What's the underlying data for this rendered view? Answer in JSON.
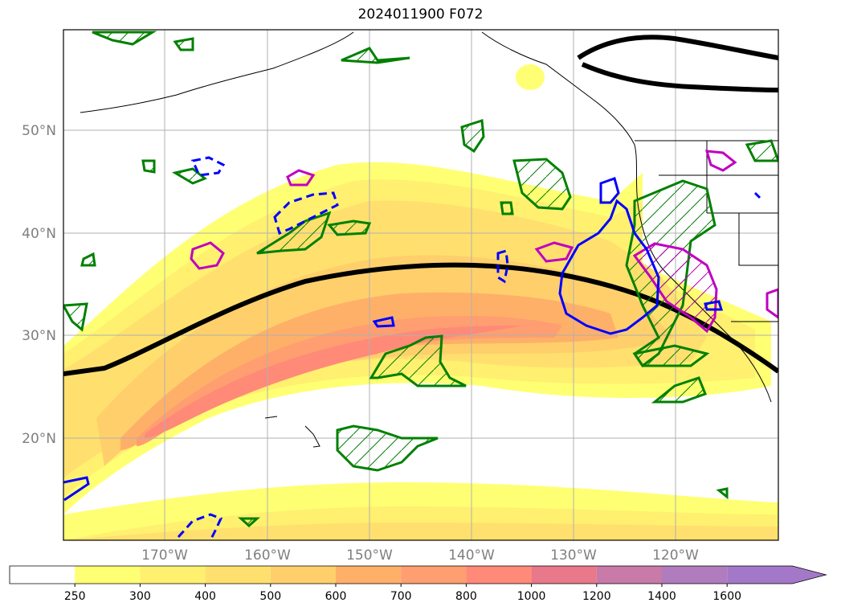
{
  "title": "2024011900 F072",
  "lat_labels": [
    "50°N",
    "40°N",
    "30°N",
    "20°N"
  ],
  "lon_labels": [
    "170°W",
    "160°W",
    "150°W",
    "140°W",
    "130°W",
    "120°W"
  ],
  "colorbar": {
    "levels": [
      "250",
      "300",
      "400",
      "500",
      "600",
      "700",
      "800",
      "1000",
      "1200",
      "1400",
      "1600"
    ],
    "colors": [
      "#ffffff",
      "#ffff73",
      "#fff070",
      "#ffe06e",
      "#ffcf6c",
      "#ffb068",
      "#ff9e70",
      "#ff8a78",
      "#e8788a",
      "#c87aa8",
      "#b07cbe",
      "#a478c8"
    ]
  },
  "legend_colors": {
    "black_contour": "#000000",
    "green_hatched": "#008000",
    "blue_contour": "#0000ff",
    "magenta_contour": "#c000c0"
  }
}
